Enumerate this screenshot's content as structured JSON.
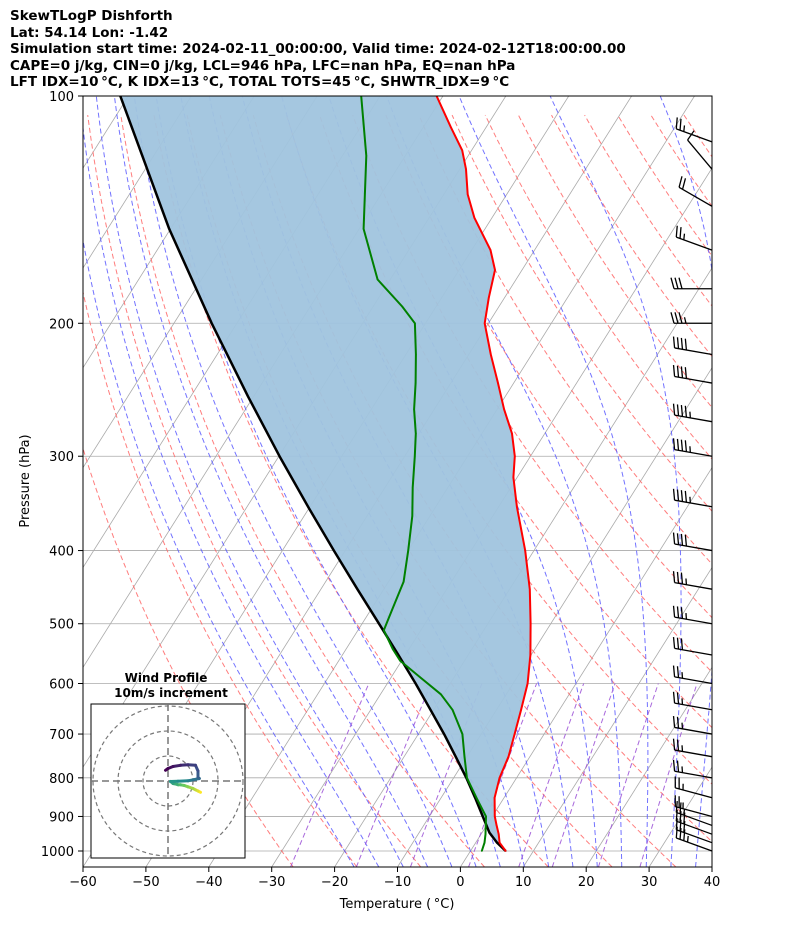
{
  "header": {
    "line1": "SkewTLogP Dishforth",
    "line2": "Lat: 54.14   Lon: -1.42",
    "line3": "Simulation start time: 2024-02-11_00:00:00, Valid time: 2024-02-12T18:00:00.00",
    "line4": "CAPE=0 j/kg, CIN=0 j/kg, LCL=946 hPa, LFC=nan hPa, EQ=nan hPa",
    "line5": "LFT IDX=10 °C, K IDX=13 °C, TOTAL TOTS=45 °C, SHWTR_IDX=9 °C"
  },
  "chart_data": {
    "type": "line",
    "subtype": "skew-T log-P",
    "xlabel": "Temperature ( °C)",
    "ylabel": "Pressure (hPa)",
    "xlim": [
      -60,
      40
    ],
    "ylim": [
      1050,
      100
    ],
    "x_ticks": [
      "−60",
      "−50",
      "−40",
      "−30",
      "−20",
      "−10",
      "0",
      "10",
      "20",
      "30",
      "40"
    ],
    "y_ticks": [
      "100",
      "200",
      "300",
      "400",
      "500",
      "600",
      "700",
      "800",
      "900",
      "1000"
    ],
    "y_scale": "log",
    "grid": true,
    "colors": {
      "temperature": "#ff0000",
      "dewpoint": "#008000",
      "parcel": "#000000",
      "fill": "#a0c4de",
      "dry_adiabat": "#ff6666",
      "moist_adiabat": "#5a5aff",
      "mixing_ratio": "#9a4fd6",
      "isotherm": "#aaaaaa"
    },
    "series": [
      {
        "key": "temperature",
        "points": [
          [
            1000,
            5.6
          ],
          [
            975,
            3.8
          ],
          [
            950,
            2.8
          ],
          [
            925,
            1.6
          ],
          [
            900,
            0.4
          ],
          [
            850,
            -1.5
          ],
          [
            800,
            -2.7
          ],
          [
            750,
            -3.4
          ],
          [
            700,
            -4.7
          ],
          [
            650,
            -6.1
          ],
          [
            600,
            -7.7
          ],
          [
            550,
            -10.1
          ],
          [
            500,
            -13.2
          ],
          [
            450,
            -16.8
          ],
          [
            400,
            -21.4
          ],
          [
            350,
            -27.1
          ],
          [
            320,
            -30.6
          ],
          [
            300,
            -32.5
          ],
          [
            280,
            -35.2
          ],
          [
            260,
            -38.9
          ],
          [
            240,
            -42.5
          ],
          [
            220,
            -46.5
          ],
          [
            200,
            -50.6
          ],
          [
            185,
            -52.5
          ],
          [
            170,
            -54.3
          ],
          [
            160,
            -57.0
          ],
          [
            145,
            -62.8
          ],
          [
            135,
            -66.2
          ],
          [
            125,
            -69.0
          ],
          [
            118,
            -71.5
          ],
          [
            110,
            -75.6
          ],
          [
            100,
            -81.0
          ]
        ]
      },
      {
        "key": "dewpoint",
        "points": [
          [
            1000,
            1.8
          ],
          [
            975,
            1.4
          ],
          [
            950,
            0.7
          ],
          [
            900,
            -1.0
          ],
          [
            850,
            -4.4
          ],
          [
            800,
            -7.9
          ],
          [
            750,
            -10.4
          ],
          [
            700,
            -13.0
          ],
          [
            650,
            -17.0
          ],
          [
            620,
            -20.4
          ],
          [
            590,
            -25.2
          ],
          [
            560,
            -30.2
          ],
          [
            540,
            -32.6
          ],
          [
            510,
            -35.9
          ],
          [
            480,
            -36.6
          ],
          [
            440,
            -37.6
          ],
          [
            400,
            -40.0
          ],
          [
            360,
            -42.8
          ],
          [
            330,
            -45.6
          ],
          [
            300,
            -48.4
          ],
          [
            280,
            -50.5
          ],
          [
            260,
            -53.2
          ],
          [
            240,
            -55.6
          ],
          [
            220,
            -58.4
          ],
          [
            200,
            -61.7
          ],
          [
            190,
            -65.4
          ],
          [
            175,
            -72.0
          ],
          [
            150,
            -79.3
          ],
          [
            120,
            -86.2
          ],
          [
            100,
            -93.0
          ]
        ]
      },
      {
        "key": "parcel",
        "points": [
          [
            1000,
            5.6
          ],
          [
            975,
            3.4
          ],
          [
            946,
            1.2
          ],
          [
            900,
            -1.5
          ],
          [
            850,
            -4.6
          ],
          [
            800,
            -8.0
          ],
          [
            750,
            -11.8
          ],
          [
            700,
            -15.9
          ],
          [
            650,
            -20.5
          ],
          [
            600,
            -25.5
          ],
          [
            550,
            -31.1
          ],
          [
            500,
            -37.3
          ],
          [
            450,
            -44.2
          ],
          [
            400,
            -51.8
          ],
          [
            350,
            -60.3
          ],
          [
            300,
            -69.9
          ],
          [
            250,
            -80.9
          ],
          [
            200,
            -94.0
          ],
          [
            150,
            -110.2
          ],
          [
            100,
            -131.3
          ]
        ]
      }
    ],
    "wind_barbs": [
      {
        "p": 1000,
        "speed_kt": 35,
        "dir": 290
      },
      {
        "p": 975,
        "speed_kt": 30,
        "dir": 290
      },
      {
        "p": 950,
        "speed_kt": 30,
        "dir": 290
      },
      {
        "p": 925,
        "speed_kt": 25,
        "dir": 290
      },
      {
        "p": 900,
        "speed_kt": 25,
        "dir": 285
      },
      {
        "p": 850,
        "speed_kt": 25,
        "dir": 285
      },
      {
        "p": 800,
        "speed_kt": 25,
        "dir": 280
      },
      {
        "p": 750,
        "speed_kt": 25,
        "dir": 280
      },
      {
        "p": 700,
        "speed_kt": 25,
        "dir": 280
      },
      {
        "p": 650,
        "speed_kt": 25,
        "dir": 280
      },
      {
        "p": 600,
        "speed_kt": 25,
        "dir": 280
      },
      {
        "p": 550,
        "speed_kt": 30,
        "dir": 280
      },
      {
        "p": 500,
        "speed_kt": 35,
        "dir": 280
      },
      {
        "p": 450,
        "speed_kt": 35,
        "dir": 280
      },
      {
        "p": 400,
        "speed_kt": 40,
        "dir": 280
      },
      {
        "p": 350,
        "speed_kt": 45,
        "dir": 280
      },
      {
        "p": 300,
        "speed_kt": 45,
        "dir": 280
      },
      {
        "p": 270,
        "speed_kt": 45,
        "dir": 280
      },
      {
        "p": 240,
        "speed_kt": 40,
        "dir": 280
      },
      {
        "p": 220,
        "speed_kt": 40,
        "dir": 280
      },
      {
        "p": 200,
        "speed_kt": 35,
        "dir": 270
      },
      {
        "p": 180,
        "speed_kt": 30,
        "dir": 270
      },
      {
        "p": 160,
        "speed_kt": 25,
        "dir": 290
      },
      {
        "p": 140,
        "speed_kt": 20,
        "dir": 300
      },
      {
        "p": 125,
        "speed_kt": 10,
        "dir": 320
      },
      {
        "p": 115,
        "speed_kt": 25,
        "dir": 290
      }
    ],
    "inset": {
      "title": "Wind Profile",
      "subtitle": "10m/s increment",
      "rings_ms": [
        10,
        20,
        30
      ],
      "hodograph_uv": [
        [
          13.0,
          -4.5
        ],
        [
          12.0,
          -4.0
        ],
        [
          11.0,
          -3.5
        ],
        [
          10.0,
          -3.0
        ],
        [
          8.0,
          -2.3
        ],
        [
          6.5,
          -1.8
        ],
        [
          5.0,
          -1.5
        ],
        [
          4.0,
          -1.5
        ],
        [
          3.5,
          -1.3
        ],
        [
          2.0,
          -1.0
        ],
        [
          1.0,
          -0.2
        ],
        [
          4.0,
          -0.1
        ],
        [
          8.0,
          0.1
        ],
        [
          10.0,
          0.5
        ],
        [
          12.5,
          1.0
        ],
        [
          12.0,
          1.5
        ],
        [
          12.0,
          4.0
        ],
        [
          11.0,
          6.3
        ],
        [
          8.0,
          6.5
        ],
        [
          5.0,
          6.3
        ],
        [
          2.0,
          5.8
        ],
        [
          0.0,
          5.0
        ],
        [
          -1.0,
          4.3
        ]
      ]
    }
  }
}
